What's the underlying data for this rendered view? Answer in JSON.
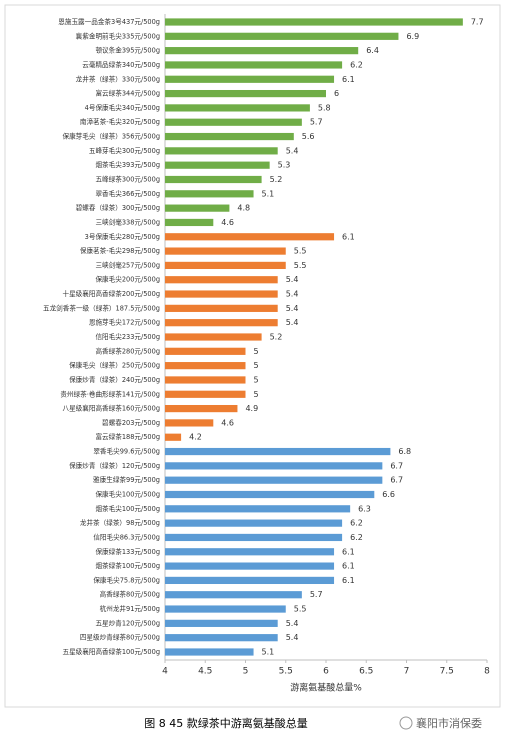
{
  "chart_data": {
    "type": "bar",
    "orientation": "horizontal",
    "x_label": "游离氨基酸总量%",
    "caption": "图 8 45 款绿茶中游离氨基酸总量",
    "watermark": "襄阳市消保委",
    "xlim": [
      4,
      8
    ],
    "xticks": [
      4,
      4.5,
      5,
      5.5,
      6,
      6.5,
      7,
      7.5,
      8
    ],
    "groups": [
      {
        "color": "#70ad47",
        "categories": [
          "恩施玉露一品金茶3号437元/500g",
          "襄紫金明前毛尖335元/500g",
          "顿议条金395元/500g",
          "云毫精品绿茶340元/500g",
          "龙井茶（绿茶）330元/500g",
          "富云绿茶344元/500g",
          "4号保康毛尖340元/500g",
          "南漳茗茶-毛尖320元/500g",
          "保康芽毛尖（绿茶）356元/500g",
          "五峰芽毛尖300元/500g",
          "烟茶毛尖393元/500g",
          "五峰绿茶300元/500g",
          "翠香毛尖366元/500g",
          "碧螺春（绿茶）300元/500g",
          "三峡剑毫338元/500g"
        ],
        "values": [
          7.7,
          6.9,
          6.4,
          6.2,
          6.1,
          6,
          5.8,
          5.7,
          5.6,
          5.4,
          5.3,
          5.2,
          5.1,
          4.8,
          4.6
        ]
      },
      {
        "color": "#ed7d31",
        "categories": [
          "3号保康毛尖280元/500g",
          "保康茗茶-毛尖298元/500g",
          "三峡剑毫257元/500g",
          "保康毛尖200元/500g",
          "十星级襄阳高香绿茶200元/500g",
          "五龙剑香茶一级（绿茶）187.5元/500g",
          "恩施芽毛尖172元/500g",
          "信阳毛尖233元/500g",
          "高香绿茶280元/500g",
          "保康毛尖（绿茶）250元/500g",
          "保康炒青（绿茶）240元/500g",
          "贵州绿茶·卷曲形绿茶141元/500g",
          "八星级襄阳高香绿茶160元/500g",
          "碧螺春203元/500g",
          "富云绿茶188元/500g"
        ],
        "values": [
          6.1,
          5.5,
          5.5,
          5.4,
          5.4,
          5.4,
          5.4,
          5.2,
          5,
          5,
          5,
          5,
          4.9,
          4.6,
          4.2
        ]
      },
      {
        "color": "#5b9bd5",
        "categories": [
          "翠香毛尖99.6元/500g",
          "保康炒青（绿茶）120元/500g",
          "雅康生绿茶99元/500g",
          "保康毛尖100元/500g",
          "烟茶毛尖100元/500g",
          "龙井茶（绿茶）98元/500g",
          "信阳毛尖86.3元/500g",
          "保康绿茶133元/500g",
          "烟茶绿茶100元/500g",
          "保康毛尖75.8元/500g",
          "高香绿茶80元/500g",
          "杭州龙井91元/500g",
          "五星炒青120元/500g",
          "四星级炒青绿茶80元/500g",
          "五星级襄阳高香绿茶100元/500g"
        ],
        "values": [
          6.8,
          6.7,
          6.7,
          6.6,
          6.3,
          6.2,
          6.2,
          6.1,
          6.1,
          6.1,
          5.7,
          5.5,
          5.4,
          5.4,
          5.1
        ]
      }
    ]
  }
}
